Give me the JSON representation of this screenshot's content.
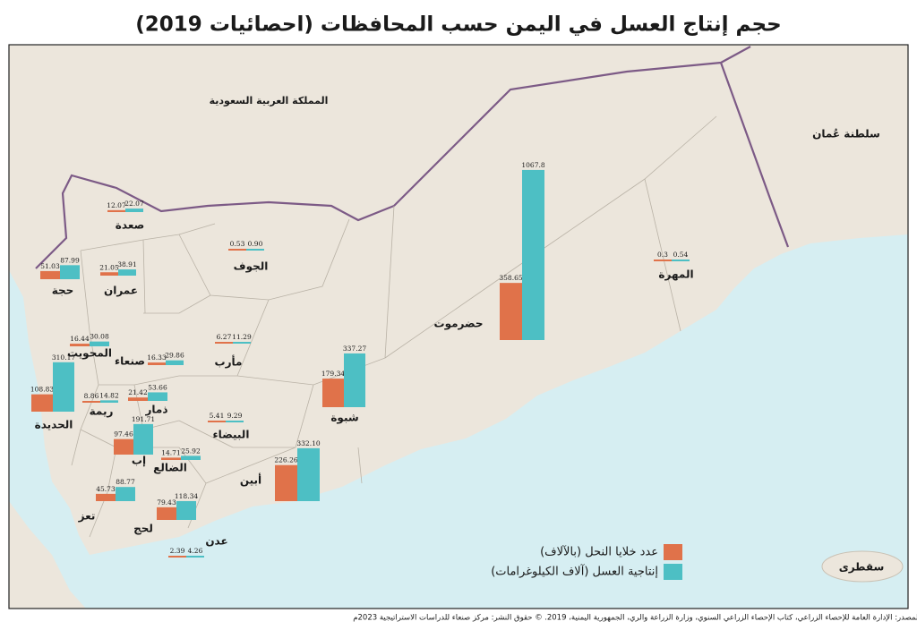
{
  "title": "حجم إنتاج العسل في اليمن حسب المحافظات (احصائيات 2019)",
  "countries": [
    "المملكة العربية السعودية",
    "سلطنة عُمان"
  ],
  "island": "سقطرى",
  "governorates": [
    {
      "name": "صعدة",
      "values": [
        12.07,
        22.07
      ]
    },
    {
      "name": "حجة",
      "values": [
        51.03,
        87.99
      ]
    },
    {
      "name": "عمران",
      "values": [
        21.05,
        38.91
      ]
    },
    {
      "name": "الجوف",
      "values": [
        0.53,
        0.9
      ],
      "value_labels": [
        "0.53",
        "0.90"
      ]
    },
    {
      "name": "المهرة",
      "values": [
        0.3,
        0.54
      ]
    },
    {
      "name": "حضرموت",
      "values": [
        358.65,
        1067.8
      ]
    },
    {
      "name": "المحويت",
      "values": [
        16.44,
        30.08
      ]
    },
    {
      "name": "صنعاء",
      "values": [
        16.33,
        29.86
      ]
    },
    {
      "name": "مأرب",
      "values": [
        6.27,
        11.29
      ]
    },
    {
      "name": "الحديدة",
      "values": [
        108.83,
        310.17
      ]
    },
    {
      "name": "ريمة",
      "values": [
        8.86,
        14.82
      ]
    },
    {
      "name": "ذمار",
      "values": [
        21.42,
        53.66
      ]
    },
    {
      "name": "شبوة",
      "values": [
        179.34,
        337.27
      ]
    },
    {
      "name": "البيضاء",
      "values": [
        5.41,
        9.29
      ]
    },
    {
      "name": "إب",
      "values": [
        97.46,
        191.71
      ]
    },
    {
      "name": "الضالع",
      "values": [
        14.71,
        25.92
      ]
    },
    {
      "name": "أبين",
      "values": [
        226.26,
        332.1
      ],
      "value_labels": [
        "226.26",
        "332.10"
      ]
    },
    {
      "name": "تعز",
      "values": [
        45.73,
        88.77
      ]
    },
    {
      "name": "لحج",
      "values": [
        79.43,
        118.34
      ]
    },
    {
      "name": "عدن",
      "values": [
        2.39,
        4.26
      ]
    }
  ],
  "legend": [
    {
      "name": "عدد خلايا النحل (بالآلاف)",
      "color": "#e0724a"
    },
    {
      "name": "إنتاجية العسل (آلاف الكيلوغرامات)",
      "color": "#4dbfc4"
    }
  ],
  "source": "المصدر: الإدارة العامة للإحصاء الزراعي، كتاب الإحصاء الزراعي السنوي، وزارة الزراعة والري، الجمهورية اليمنية، 2019.",
  "copyright": "© حقوق النشر: مركز صنعاء للدراسات الاستراتيجية 2023م"
}
